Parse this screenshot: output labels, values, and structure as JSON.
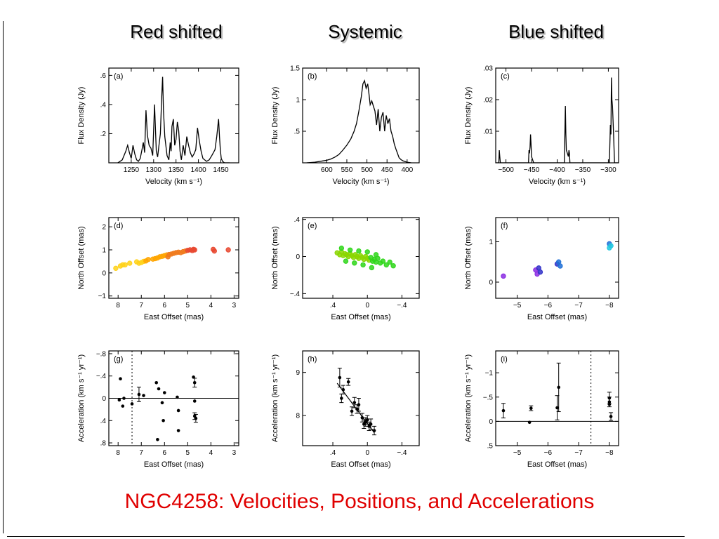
{
  "slide": {
    "title": "NGC4258: Velocities, Positions, and Accelerations",
    "column_headers": [
      "Red shifted",
      "Systemic",
      "Blue shifted"
    ],
    "title_color": "#e00000"
  },
  "chart_data": [
    {
      "panel": "(a)",
      "type": "line",
      "xlabel": "Velocity (km s⁻¹)",
      "ylabel": "Flux Density (Jy)",
      "xlim": [
        1200,
        1490
      ],
      "ylim": [
        0,
        0.65
      ],
      "xticks": [
        1250,
        1300,
        1350,
        1400,
        1450
      ],
      "yticks": [
        0.2,
        0.4,
        0.6
      ],
      "x": [
        1220,
        1230,
        1238,
        1242,
        1246,
        1250,
        1254,
        1258,
        1262,
        1266,
        1270,
        1274,
        1277,
        1280,
        1283,
        1286,
        1290,
        1294,
        1298,
        1302,
        1306,
        1309,
        1312,
        1315,
        1318,
        1320,
        1322,
        1325,
        1330,
        1334,
        1337,
        1339,
        1341,
        1344,
        1347,
        1350,
        1353,
        1356,
        1359,
        1362,
        1366,
        1370,
        1374,
        1378,
        1382,
        1386,
        1390,
        1394,
        1398,
        1402,
        1406,
        1410,
        1418,
        1424,
        1430,
        1437,
        1441,
        1445,
        1447,
        1449,
        1451,
        1454,
        1458,
        1470
      ],
      "y": [
        0,
        0.02,
        0.08,
        0.12,
        0.07,
        0.03,
        0.12,
        0.06,
        0.02,
        0.01,
        0.03,
        0.09,
        0.14,
        0.07,
        0.36,
        0.19,
        0.12,
        0.1,
        0.05,
        0.4,
        0.08,
        0.04,
        0.12,
        0.2,
        0.45,
        0.59,
        0.36,
        0.18,
        0.05,
        0.02,
        0.14,
        0.08,
        0.25,
        0.3,
        0.12,
        0.16,
        0.28,
        0.22,
        0.08,
        0.02,
        0.12,
        0.05,
        0.18,
        0.12,
        0.07,
        0.04,
        0.06,
        0.09,
        0.24,
        0.15,
        0.08,
        0.03,
        0.01,
        0.02,
        0.05,
        0.09,
        0.18,
        0.3,
        0.18,
        0.09,
        0.03,
        0.01,
        0,
        0
      ]
    },
    {
      "panel": "(b)",
      "type": "line",
      "xlabel": "Velocity (km s⁻¹)",
      "ylabel": "Flux Density (Jy)",
      "xlim": [
        660,
        370
      ],
      "ylim": [
        0,
        1.5
      ],
      "xticks": [
        600,
        550,
        500,
        450,
        400
      ],
      "yticks": [
        0.5,
        1,
        1.5
      ],
      "x": [
        650,
        630,
        610,
        600,
        590,
        580,
        570,
        560,
        550,
        540,
        532,
        526,
        520,
        514,
        510,
        506,
        502,
        498,
        495,
        492,
        488,
        484,
        480,
        476,
        472,
        468,
        464,
        460,
        456,
        452,
        448,
        444,
        440,
        436,
        432,
        428,
        424,
        420,
        415,
        410,
        405,
        400,
        390
      ],
      "y": [
        0,
        0.01,
        0.03,
        0.04,
        0.06,
        0.09,
        0.13,
        0.2,
        0.28,
        0.38,
        0.5,
        0.62,
        0.82,
        1.05,
        1.25,
        1.3,
        1.18,
        1.25,
        1.1,
        0.92,
        0.98,
        0.9,
        0.82,
        0.6,
        0.85,
        0.5,
        0.72,
        0.8,
        0.5,
        0.75,
        0.62,
        0.7,
        0.5,
        0.42,
        0.3,
        0.22,
        0.15,
        0.08,
        0.05,
        0.03,
        0.02,
        0.01,
        0
      ]
    },
    {
      "panel": "(c)",
      "type": "line",
      "xlabel": "Velocity (km s⁻¹)",
      "ylabel": "Flux Density (Jy)",
      "xlim": [
        -520,
        -280
      ],
      "ylim": [
        0,
        0.03
      ],
      "xticks": [
        -500,
        -450,
        -400,
        -350,
        -300
      ],
      "yticks": [
        0.01,
        0.02,
        0.03
      ],
      "x": [
        -520,
        -514,
        -513,
        -512,
        -511,
        -505,
        -460,
        -456,
        -455,
        -454,
        -453,
        -452,
        -451,
        -450,
        -446,
        -400,
        -386,
        -385,
        -384,
        -383,
        -382,
        -378,
        -377,
        -376,
        -375,
        -370,
        -330,
        -298,
        -296,
        -295,
        -294,
        -293,
        -292,
        -290,
        -288,
        -285,
        -280
      ],
      "y": [
        0,
        0,
        0.004,
        0.002,
        0,
        0,
        0,
        0,
        0.004,
        0.003,
        0.005,
        0.009,
        0.006,
        0.002,
        0,
        0,
        0,
        0.008,
        0.018,
        0.009,
        0.004,
        0.002,
        0.004,
        0.003,
        0,
        0,
        0,
        0,
        0.012,
        0.009,
        0.027,
        0.02,
        0.018,
        0.01,
        0,
        0,
        0
      ]
    },
    {
      "panel": "(d)",
      "type": "scatter",
      "xlabel": "East Offset (mas)",
      "ylabel": "North Offset (mas)",
      "xlim": [
        8.4,
        2.8
      ],
      "ylim": [
        -1.1,
        2.4
      ],
      "xticks": [
        8,
        7,
        6,
        5,
        4,
        3
      ],
      "yticks": [
        -1,
        0,
        1,
        2
      ],
      "colors": [
        "#ffd21a",
        "#ffa500",
        "#f07a1c",
        "#e84830"
      ],
      "x": [
        8.1,
        7.9,
        7.8,
        7.7,
        7.5,
        7.2,
        7.1,
        7.0,
        6.9,
        6.8,
        6.7,
        6.5,
        6.4,
        6.3,
        6.2,
        6.1,
        6.0,
        5.9,
        5.85,
        5.8,
        5.7,
        5.6,
        5.5,
        5.4,
        5.3,
        5.2,
        5.1,
        5.0,
        4.9,
        4.8,
        4.75,
        4.7,
        3.9,
        3.85,
        3.25
      ],
      "y": [
        0.2,
        0.3,
        0.35,
        0.35,
        0.42,
        0.48,
        0.42,
        0.45,
        0.5,
        0.52,
        0.58,
        0.6,
        0.62,
        0.65,
        0.7,
        0.72,
        0.75,
        0.78,
        0.7,
        0.8,
        0.82,
        0.85,
        0.88,
        0.9,
        0.88,
        0.92,
        0.95,
        0.98,
        1.0,
        0.97,
        1.02,
        1.0,
        1.02,
        0.95,
        1.0
      ]
    },
    {
      "panel": "(e)",
      "type": "scatter",
      "xlabel": "East Offset (mas)",
      "ylabel": "North Offset (mas)",
      "xlim": [
        0.75,
        -0.6
      ],
      "ylim": [
        -0.45,
        0.42
      ],
      "xticks": [
        0.4,
        0,
        -0.4
      ],
      "yticks": [
        -0.4,
        0,
        0.4
      ],
      "colors": [
        "#8ad600",
        "#2fd61a"
      ],
      "x": [
        0.35,
        0.32,
        0.3,
        0.28,
        0.26,
        0.24,
        0.22,
        0.2,
        0.18,
        0.16,
        0.14,
        0.12,
        0.1,
        0.08,
        0.06,
        0.04,
        0.02,
        0,
        -0.02,
        -0.04,
        -0.06,
        -0.08,
        -0.1,
        -0.12,
        -0.15,
        -0.18,
        -0.22,
        -0.26,
        -0.3,
        0.3,
        0.25,
        0.2,
        0.15,
        0.1,
        0.05,
        0,
        -0.05,
        -0.1
      ],
      "y": [
        0.04,
        0.02,
        0.05,
        0.01,
        0.03,
        0.02,
        0.0,
        0.03,
        0.01,
        -0.01,
        0.02,
        0.0,
        -0.02,
        0.01,
        -0.01,
        -0.03,
        0.0,
        -0.02,
        -0.04,
        -0.01,
        -0.05,
        -0.03,
        -0.06,
        -0.02,
        -0.07,
        -0.05,
        -0.09,
        -0.06,
        -0.1,
        0.09,
        -0.05,
        0.07,
        -0.07,
        0.06,
        -0.09,
        0.05,
        -0.12,
        0.02
      ]
    },
    {
      "panel": "(f)",
      "type": "scatter",
      "xlabel": "East Offset (mas)",
      "ylabel": "North Offset (mas)",
      "xlim": [
        -4.3,
        -8.3
      ],
      "ylim": [
        -0.4,
        1.6
      ],
      "xticks": [
        -5,
        -6,
        -7,
        -8
      ],
      "yticks": [
        0,
        1
      ],
      "colors": [
        "#8a2be2",
        "#3030c8",
        "#1e6fd6",
        "#20c8e0"
      ],
      "x": [
        -4.55,
        -5.6,
        -5.65,
        -5.7,
        -5.75,
        -6.3,
        -6.35,
        -6.4,
        -8.0,
        -8.05,
        -8.0
      ],
      "y": [
        0.15,
        0.3,
        0.2,
        0.35,
        0.25,
        0.45,
        0.5,
        0.4,
        0.95,
        0.9,
        0.85
      ]
    },
    {
      "panel": "(g)",
      "type": "scatter",
      "xlabel": "East Offset (mas)",
      "ylabel": "Acceleration (km s⁻¹ yr⁻¹)",
      "xlim": [
        8.4,
        2.8
      ],
      "ylim": [
        0.85,
        -0.85
      ],
      "xticks": [
        8,
        7,
        6,
        5,
        4,
        3
      ],
      "yticks": [
        -0.8,
        -0.4,
        0,
        0.4,
        0.8
      ],
      "dotted_x": 7.4,
      "zero_line": 0,
      "x": [
        7.95,
        7.9,
        7.8,
        7.75,
        7.4,
        7.1,
        6.9,
        6.35,
        6.3,
        6.25,
        6.1,
        6.05,
        6.0,
        5.45,
        5.4,
        5.4,
        4.75,
        4.7,
        4.7,
        4.7,
        4.65
      ],
      "y": [
        0.03,
        -0.35,
        0.14,
        0.0,
        0.1,
        -0.07,
        -0.05,
        -0.28,
        0.74,
        -0.17,
        0.08,
        0.4,
        -0.1,
        -0.02,
        0.22,
        0.58,
        -0.38,
        -0.28,
        0.05,
        0.32,
        0.36
      ],
      "err": [
        0,
        0,
        0,
        0,
        0,
        0.13,
        0,
        0,
        0,
        0,
        0,
        0,
        0,
        0,
        0,
        0,
        0,
        0.08,
        0,
        0.06,
        0.07
      ]
    },
    {
      "panel": "(h)",
      "type": "scatter",
      "xlabel": "East Offset (mas)",
      "ylabel": "Acceleration (km s⁻¹ yr⁻¹)",
      "xlim": [
        0.75,
        -0.6
      ],
      "ylim": [
        7.3,
        9.5
      ],
      "xticks": [
        0.4,
        0,
        -0.4
      ],
      "yticks": [
        8,
        9
      ],
      "fit_line": [
        [
          0.35,
          8.75
        ],
        [
          -0.08,
          7.6
        ]
      ],
      "x": [
        0.32,
        0.3,
        0.28,
        0.22,
        0.18,
        0.15,
        0.12,
        0.1,
        0.06,
        0.04,
        0.02,
        0.0,
        -0.02,
        -0.04,
        -0.08
      ],
      "y": [
        8.88,
        8.4,
        8.6,
        8.78,
        8.1,
        8.3,
        8.15,
        8.25,
        7.95,
        7.8,
        7.85,
        7.9,
        7.75,
        7.8,
        7.65
      ],
      "err": [
        0.22,
        0.1,
        0.1,
        0.08,
        0.1,
        0.12,
        0.1,
        0.15,
        0.1,
        0.1,
        0.1,
        0.1,
        0.1,
        0.12,
        0.1
      ]
    },
    {
      "panel": "(i)",
      "type": "scatter",
      "xlabel": "East Offset (mas)",
      "ylabel": "Acceleration (km s⁻¹ yr⁻¹)",
      "xlim": [
        -4.3,
        -8.3
      ],
      "ylim": [
        0.5,
        -1.45
      ],
      "xticks": [
        -5,
        -6,
        -7,
        -8
      ],
      "yticks": [
        -1,
        -0.5,
        0,
        0.5
      ],
      "dotted_x": -7.4,
      "zero_line": 0,
      "x": [
        -4.55,
        -5.4,
        -5.45,
        -6.3,
        -6.35,
        -8.0,
        -8.0,
        -8.05,
        -8.0
      ],
      "y": [
        -0.22,
        0.02,
        -0.27,
        -0.28,
        -0.7,
        -0.4,
        -0.48,
        -0.1,
        -0.35
      ],
      "err": [
        0.15,
        0,
        0.05,
        0.25,
        0.5,
        0.1,
        0.12,
        0.08,
        0
      ]
    }
  ]
}
